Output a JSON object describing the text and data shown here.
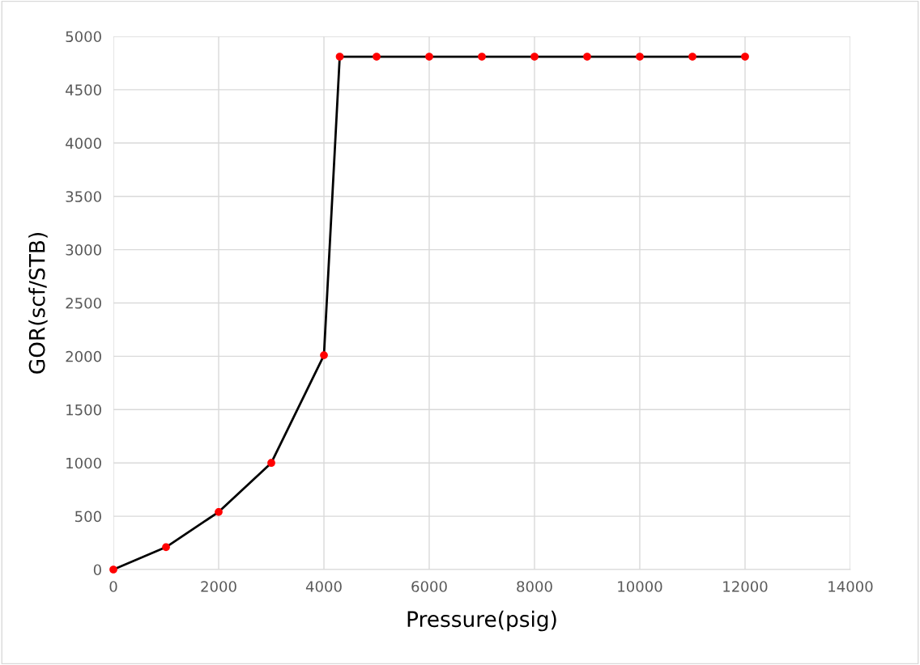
{
  "chart_data": {
    "type": "line",
    "xlabel": "Pressure(psig)",
    "ylabel": "GOR(scf/STB)",
    "x": [
      0,
      1000,
      2000,
      3000,
      4000,
      4300,
      5000,
      6000,
      7000,
      8000,
      9000,
      10000,
      11000,
      12000
    ],
    "series": [
      {
        "color": "#000000",
        "colors": [
          "#ff0000",
          "#ff0000",
          "#ff0000",
          "#ff0000",
          "#ff0000",
          "#ff0000",
          "#ff0000",
          "#ff0000",
          "#ff0000",
          "#ff0000",
          "#ff0000",
          "#ff0000",
          "#ff0000",
          "#ff0000"
        ],
        "values": [
          0,
          210,
          540,
          1000,
          2010,
          4810,
          4810,
          4810,
          4810,
          4810,
          4810,
          4810,
          4810,
          4810
        ]
      }
    ],
    "marker": "circle",
    "line_style": "solid",
    "xlim": [
      0,
      14000
    ],
    "xticks": [
      0,
      2000,
      4000,
      6000,
      8000,
      10000,
      12000,
      14000
    ],
    "ylim": [
      0,
      5000
    ],
    "yticks": [
      0,
      500,
      1000,
      1500,
      2000,
      2500,
      3000,
      3500,
      4000,
      4500,
      5000
    ],
    "grid": true,
    "legend": false
  }
}
